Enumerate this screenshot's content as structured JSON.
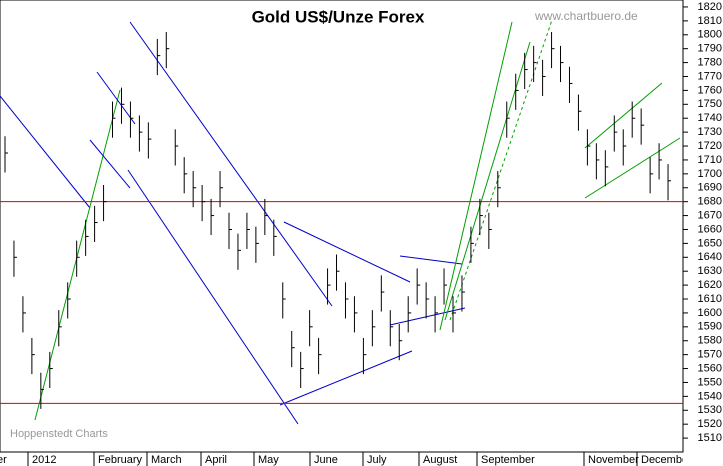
{
  "chart_data": {
    "type": "ohlc",
    "title": "Gold US$/Unze Forex",
    "source": "www.chartbuero.de",
    "credit": "Hoppenstedt Charts",
    "x_labels": [
      "December",
      "2012",
      "February",
      "March",
      "April",
      "May",
      "June",
      "July",
      "August",
      "September",
      "November",
      "December"
    ],
    "series": [
      {
        "name": "Gold",
        "color": "#000000",
        "close": [
          1715,
          1640,
          1600,
          1570,
          1545,
          1560,
          1590,
          1610,
          1640,
          1655,
          1665,
          1680,
          1740,
          1750,
          1740,
          1730,
          1725,
          1785,
          1790,
          1720,
          1700,
          1690,
          1680,
          1670,
          1690,
          1660,
          1645,
          1660,
          1650,
          1670,
          1655,
          1610,
          1575,
          1560,
          1590,
          1570,
          1620,
          1630,
          1610,
          1600,
          1570,
          1590,
          1615,
          1590,
          1580,
          1600,
          1620,
          1610,
          1600,
          1620,
          1600,
          1615,
          1650,
          1670,
          1660,
          1690,
          1740,
          1760,
          1775,
          1780,
          1770,
          1790,
          1780,
          1765,
          1745,
          1720,
          1710,
          1705,
          1730,
          1720,
          1740,
          1735,
          1700,
          1710,
          1695
        ],
        "high": [
          1727,
          1652,
          1612,
          1582,
          1557,
          1572,
          1602,
          1622,
          1652,
          1667,
          1677,
          1692,
          1752,
          1762,
          1752,
          1742,
          1737,
          1797,
          1802,
          1732,
          1712,
          1702,
          1692,
          1682,
          1702,
          1672,
          1657,
          1672,
          1662,
          1682,
          1667,
          1622,
          1587,
          1572,
          1602,
          1582,
          1632,
          1642,
          1622,
          1612,
          1582,
          1602,
          1627,
          1602,
          1592,
          1612,
          1632,
          1622,
          1612,
          1632,
          1612,
          1627,
          1662,
          1682,
          1672,
          1702,
          1752,
          1772,
          1787,
          1792,
          1782,
          1802,
          1792,
          1777,
          1757,
          1732,
          1722,
          1717,
          1742,
          1732,
          1752,
          1747,
          1712,
          1722,
          1707
        ],
        "low": [
          1701,
          1626,
          1586,
          1556,
          1531,
          1546,
          1576,
          1596,
          1626,
          1641,
          1651,
          1666,
          1726,
          1736,
          1726,
          1716,
          1711,
          1771,
          1776,
          1706,
          1686,
          1676,
          1666,
          1656,
          1676,
          1646,
          1631,
          1646,
          1636,
          1656,
          1641,
          1596,
          1561,
          1546,
          1576,
          1556,
          1606,
          1616,
          1596,
          1586,
          1556,
          1576,
          1601,
          1576,
          1566,
          1586,
          1606,
          1596,
          1586,
          1606,
          1586,
          1601,
          1636,
          1656,
          1646,
          1676,
          1726,
          1746,
          1761,
          1766,
          1756,
          1776,
          1766,
          1751,
          1731,
          1706,
          1696,
          1691,
          1716,
          1706,
          1726,
          1721,
          1686,
          1696,
          1681
        ]
      }
    ],
    "hlines": [
      1680,
      1535
    ],
    "hline_color": "#e00000",
    "ylim": [
      1500,
      1825
    ],
    "yticks": [
      1510,
      1520,
      1530,
      1540,
      1550,
      1560,
      1570,
      1580,
      1590,
      1600,
      1610,
      1620,
      1630,
      1640,
      1650,
      1660,
      1670,
      1680,
      1690,
      1700,
      1710,
      1720,
      1730,
      1740,
      1750,
      1760,
      1770,
      1780,
      1790,
      1800,
      1810,
      1820
    ]
  }
}
